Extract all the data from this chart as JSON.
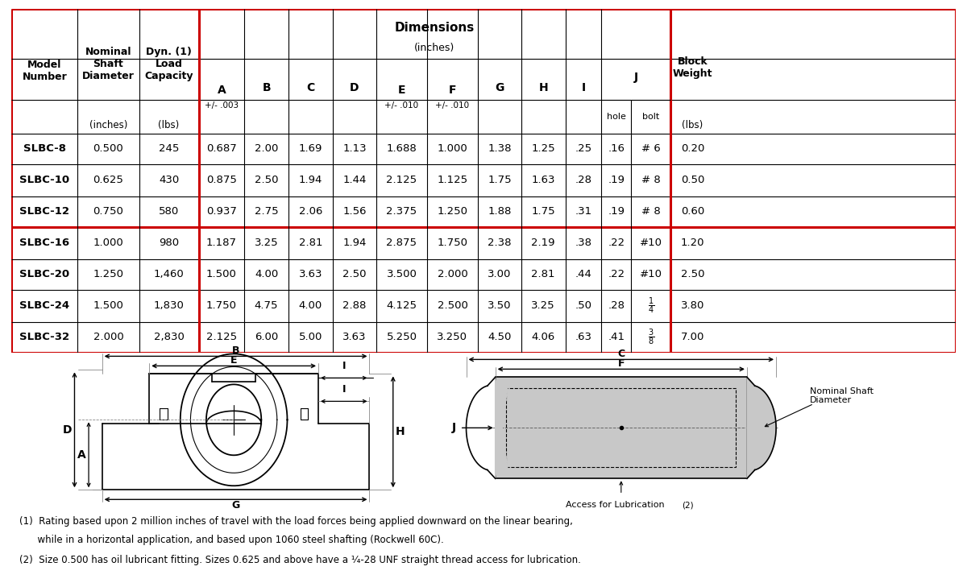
{
  "rows": [
    [
      "SLBC-8",
      "0.500",
      "245",
      "0.687",
      "2.00",
      "1.69",
      "1.13",
      "1.688",
      "1.000",
      "1.38",
      "1.25",
      ".25",
      ".16",
      "# 6",
      "0.20"
    ],
    [
      "SLBC-10",
      "0.625",
      "430",
      "0.875",
      "2.50",
      "1.94",
      "1.44",
      "2.125",
      "1.125",
      "1.75",
      "1.63",
      ".28",
      ".19",
      "# 8",
      "0.50"
    ],
    [
      "SLBC-12",
      "0.750",
      "580",
      "0.937",
      "2.75",
      "2.06",
      "1.56",
      "2.375",
      "1.250",
      "1.88",
      "1.75",
      ".31",
      ".19",
      "# 8",
      "0.60"
    ],
    [
      "SLBC-16",
      "1.000",
      "980",
      "1.187",
      "3.25",
      "2.81",
      "1.94",
      "2.875",
      "1.750",
      "2.38",
      "2.19",
      ".38",
      ".22",
      "#10",
      "1.20"
    ],
    [
      "SLBC-20",
      "1.250",
      "1,460",
      "1.500",
      "4.00",
      "3.63",
      "2.50",
      "3.500",
      "2.000",
      "3.00",
      "2.81",
      ".44",
      ".22",
      "#10",
      "2.50"
    ],
    [
      "SLBC-24",
      "1.500",
      "1,830",
      "1.750",
      "4.75",
      "4.00",
      "2.88",
      "4.125",
      "2.500",
      "3.50",
      "3.25",
      ".50",
      ".28",
      "1/4",
      "3.80"
    ],
    [
      "SLBC-32",
      "2.000",
      "2,830",
      "2.125",
      "6.00",
      "5.00",
      "3.63",
      "5.250",
      "3.250",
      "4.50",
      "4.06",
      ".63",
      ".41",
      "3/8",
      "7.00"
    ]
  ],
  "red": "#CC0000",
  "black": "#000000",
  "white": "#ffffff",
  "gray": "#c8c8c8",
  "note1a": "(1)  Rating based upon 2 million inches of travel with the load forces being applied downward on the linear bearing,",
  "note1b": "      while in a horizontal application, and based upon 1060 steel shafting (Rockwell 60C).",
  "note2": "(2)  Size 0.500 has oil lubricant fitting. Sizes 0.625 and above have a ¹⁄₄-28 UNF straight thread access for lubrication."
}
